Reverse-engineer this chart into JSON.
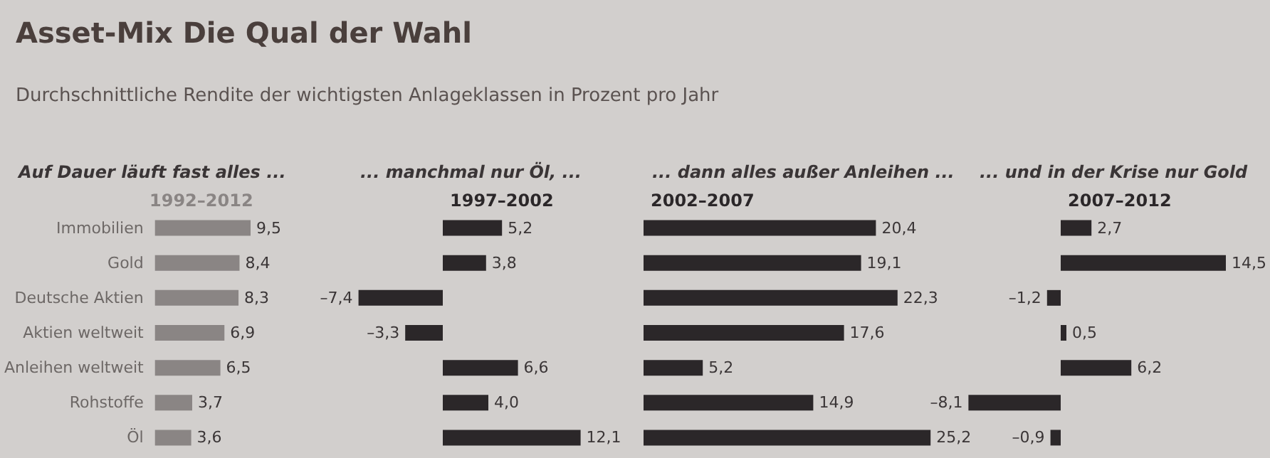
{
  "chart_data": [
    {
      "type": "bar",
      "orientation": "horizontal",
      "title": "Auf Dauer läuft fast alles ...",
      "subtitle": "1992–2012",
      "annotations": [
        "Asset-Mix Die Qual der Wahl",
        "Durchschnittliche Rendite der wichtigsten Anlageklassen in Prozent pro Jahr"
      ],
      "categories": [
        "Immobilien",
        "Gold",
        "Deutsche Aktien",
        "Aktien weltweit",
        "Anleihen weltweit",
        "Rohstoffe",
        "Öl"
      ],
      "color": "#8a8584",
      "values": [
        9.5,
        8.4,
        8.3,
        6.9,
        6.5,
        3.7,
        3.6
      ],
      "value_labels": [
        "9,5",
        "8,4",
        "8,3",
        "6,9",
        "6,5",
        "3,7",
        "3,6"
      ],
      "tick_labels": "y"
    },
    {
      "type": "bar",
      "orientation": "horizontal",
      "title": "... manchmal nur Öl, ...",
      "subtitle": "1997–2002",
      "categories": [
        null,
        null,
        null,
        null,
        null,
        null,
        null
      ],
      "color": "#2b2729",
      "values": [
        5.2,
        3.8,
        -7.4,
        -3.3,
        6.6,
        4.0,
        12.1
      ],
      "value_labels": [
        "5,2",
        "3,8",
        "–7,4",
        "–3,3",
        "6,6",
        "4,0",
        "12,1"
      ],
      "tick_labels": false
    },
    {
      "type": "bar",
      "orientation": "horizontal",
      "title": "... dann alles außer Anleihen ...",
      "subtitle": "2002–2007",
      "categories": [
        null,
        null,
        null,
        null,
        null,
        null,
        null
      ],
      "color": "#2b2729",
      "values": [
        20.4,
        19.1,
        22.3,
        17.6,
        5.2,
        14.9,
        25.2
      ],
      "value_labels": [
        "20,4",
        "19,1",
        "22,3",
        "17,6",
        "5,2",
        "14,9",
        "25,2"
      ],
      "tick_labels": false
    },
    {
      "type": "bar",
      "orientation": "horizontal",
      "title": "... und in der Krise nur Gold",
      "subtitle": "2007–2012",
      "categories": [
        null,
        null,
        null,
        null,
        null,
        null,
        null
      ],
      "color": "#2b2729",
      "values": [
        2.7,
        14.5,
        -1.2,
        0.5,
        6.2,
        -8.1,
        -0.9
      ],
      "value_labels": [
        "2,7",
        "14,5",
        "–1,2",
        "0,5",
        "6,2",
        "–8,1",
        "–0,9"
      ],
      "tick_labels": false
    }
  ]
}
